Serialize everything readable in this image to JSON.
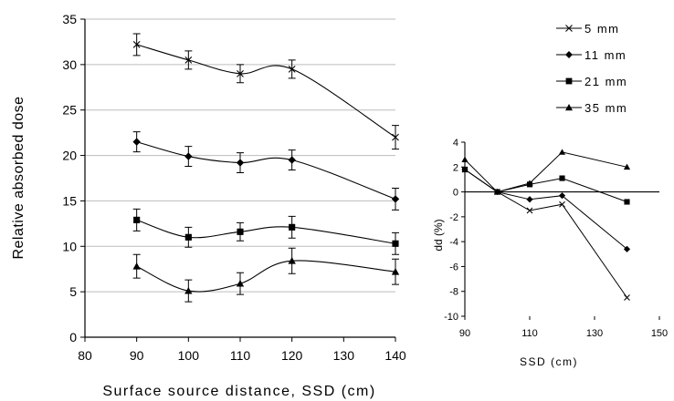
{
  "chart_data": [
    {
      "type": "line",
      "title": "",
      "xlabel": "Surface source distance, SSD (cm)",
      "ylabel": "Relative absorbed dose",
      "xlim": [
        80,
        140
      ],
      "ylim": [
        0,
        35
      ],
      "x_ticks": [
        "80",
        "90",
        "100",
        "110",
        "120",
        "130",
        "140"
      ],
      "y_ticks": [
        "0",
        "5",
        "10",
        "15",
        "20",
        "25",
        "30",
        "35"
      ],
      "grid": "horizontal",
      "x": [
        90,
        100,
        110,
        120,
        140
      ],
      "series": [
        {
          "name": "5 mm",
          "marker": "x",
          "values": [
            32.2,
            30.5,
            29.0,
            29.5,
            22.0
          ],
          "errors": [
            1.2,
            1.0,
            1.0,
            1.0,
            1.3
          ]
        },
        {
          "name": "11 mm",
          "marker": "diamond",
          "values": [
            21.5,
            19.9,
            19.2,
            19.5,
            15.2
          ],
          "errors": [
            1.1,
            1.1,
            1.1,
            1.1,
            1.2
          ]
        },
        {
          "name": "21 mm",
          "marker": "square",
          "values": [
            12.9,
            11.0,
            11.6,
            12.1,
            10.3
          ],
          "errors": [
            1.2,
            1.1,
            1.0,
            1.2,
            1.2
          ]
        },
        {
          "name": "35 mm",
          "marker": "triangle",
          "values": [
            7.8,
            5.1,
            5.9,
            8.4,
            7.2
          ],
          "errors": [
            1.3,
            1.2,
            1.2,
            1.4,
            1.4
          ]
        }
      ]
    },
    {
      "type": "line",
      "title": "",
      "xlabel": "SSD (cm)",
      "ylabel": "dd (%)",
      "xlim": [
        90,
        150
      ],
      "ylim": [
        -10,
        4
      ],
      "x_ticks": [
        "90",
        "110",
        "130",
        "150"
      ],
      "y_ticks": [
        "4",
        "2",
        "0",
        "-2",
        "-4",
        "-6",
        "-8",
        "-10"
      ],
      "grid": "off",
      "legend": "top",
      "x": [
        90,
        100,
        110,
        120,
        140
      ],
      "series": [
        {
          "name": "5 mm",
          "marker": "x",
          "values": [
            1.8,
            0.0,
            -1.5,
            -1.0,
            -8.5
          ]
        },
        {
          "name": "11 mm",
          "marker": "diamond",
          "values": [
            1.8,
            0.0,
            -0.6,
            -0.3,
            -4.6
          ]
        },
        {
          "name": "21 mm",
          "marker": "square",
          "values": [
            1.8,
            0.0,
            0.6,
            1.1,
            -0.8
          ]
        },
        {
          "name": "35 mm",
          "marker": "triangle",
          "values": [
            2.6,
            0.0,
            0.7,
            3.2,
            2.0
          ]
        }
      ]
    }
  ]
}
